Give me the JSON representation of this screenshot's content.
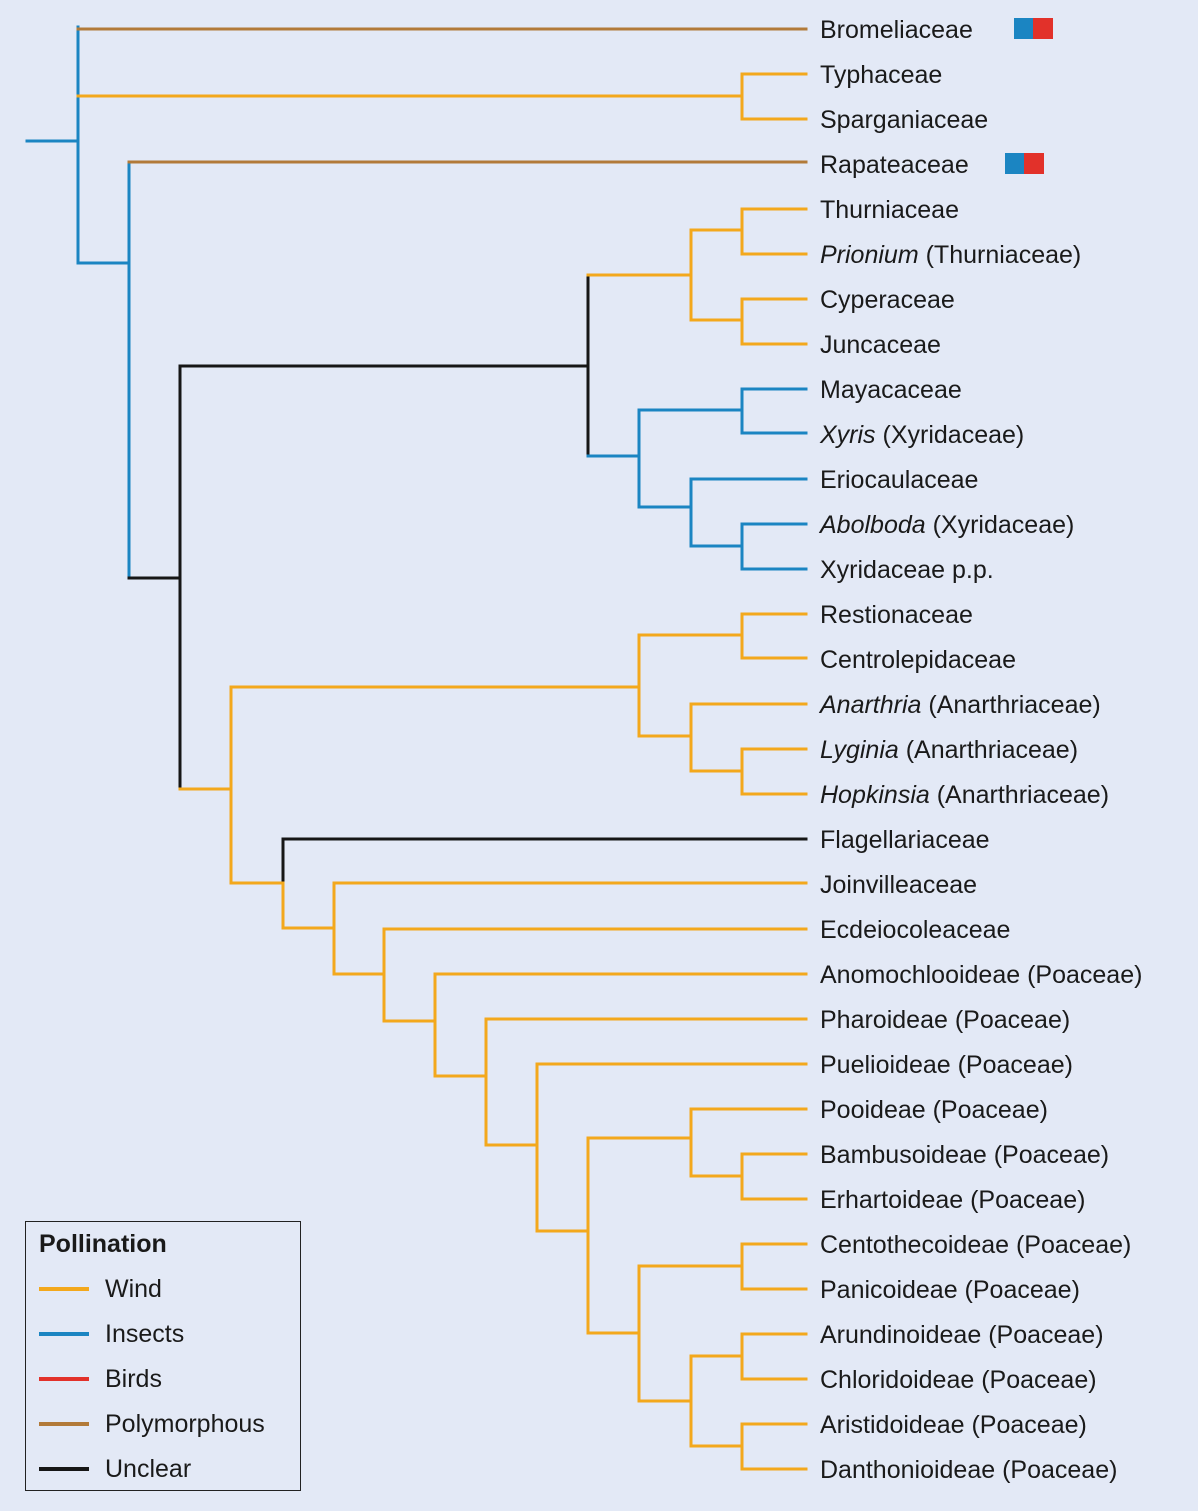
{
  "colors": {
    "wind": "#f3a81c",
    "insects": "#1b85c2",
    "birds": "#e2312a",
    "polymorphous": "#b27a39",
    "unclear": "#161616"
  },
  "legend": {
    "title": "Pollination",
    "items": [
      {
        "key": "wind",
        "label": "Wind"
      },
      {
        "key": "insects",
        "label": "Insects"
      },
      {
        "key": "birds",
        "label": "Birds"
      },
      {
        "key": "polymorphous",
        "label": "Polymorphous"
      },
      {
        "key": "unclear",
        "label": "Unclear"
      }
    ]
  },
  "taxa": [
    {
      "italic": "",
      "text": "Bromeliaceae",
      "badge": [
        "insects",
        "birds"
      ]
    },
    {
      "italic": "",
      "text": "Typhaceae"
    },
    {
      "italic": "",
      "text": "Sparganiaceae"
    },
    {
      "italic": "",
      "text": "Rapateaceae",
      "badge": [
        "insects",
        "birds"
      ]
    },
    {
      "italic": "",
      "text": "Thurniaceae"
    },
    {
      "italic": "Prionium",
      "text": " (Thurniaceae)"
    },
    {
      "italic": "",
      "text": "Cyperaceae"
    },
    {
      "italic": "",
      "text": "Juncaceae"
    },
    {
      "italic": "",
      "text": "Mayacaceae"
    },
    {
      "italic": "Xyris",
      "text": " (Xyridaceae)"
    },
    {
      "italic": "",
      "text": "Eriocaulaceae"
    },
    {
      "italic": "Abolboda",
      "text": " (Xyridaceae)"
    },
    {
      "italic": "",
      "text": "Xyridaceae p.p."
    },
    {
      "italic": "",
      "text": "Restionaceae"
    },
    {
      "italic": "",
      "text": "Centrolepidaceae"
    },
    {
      "italic": "Anarthria",
      "text": " (Anarthriaceae)"
    },
    {
      "italic": "Lyginia",
      "text": " (Anarthriaceae)"
    },
    {
      "italic": "Hopkinsia",
      "text": " (Anarthriaceae)"
    },
    {
      "italic": "",
      "text": "Flagellariaceae"
    },
    {
      "italic": "",
      "text": "Joinvilleaceae"
    },
    {
      "italic": "",
      "text": "Ecdeiocoleaceae"
    },
    {
      "italic": "",
      "text": "Anomochlooideae (Poaceae)"
    },
    {
      "italic": "",
      "text": "Pharoideae (Poaceae)"
    },
    {
      "italic": "",
      "text": "Puelioideae (Poaceae)"
    },
    {
      "italic": "",
      "text": "Pooideae (Poaceae)"
    },
    {
      "italic": "",
      "text": "Bambusoideae (Poaceae)"
    },
    {
      "italic": "",
      "text": "Erhartoideae (Poaceae)"
    },
    {
      "italic": "",
      "text": "Centothecoideae (Poaceae)"
    },
    {
      "italic": "",
      "text": "Panicoideae (Poaceae)"
    },
    {
      "italic": "",
      "text": "Arundinoideae (Poaceae)"
    },
    {
      "italic": "",
      "text": "Chloridoideae (Poaceae)"
    },
    {
      "italic": "",
      "text": "Aristidoideae (Poaceae)"
    },
    {
      "italic": "",
      "text": "Danthonioideae (Poaceae)"
    }
  ]
}
